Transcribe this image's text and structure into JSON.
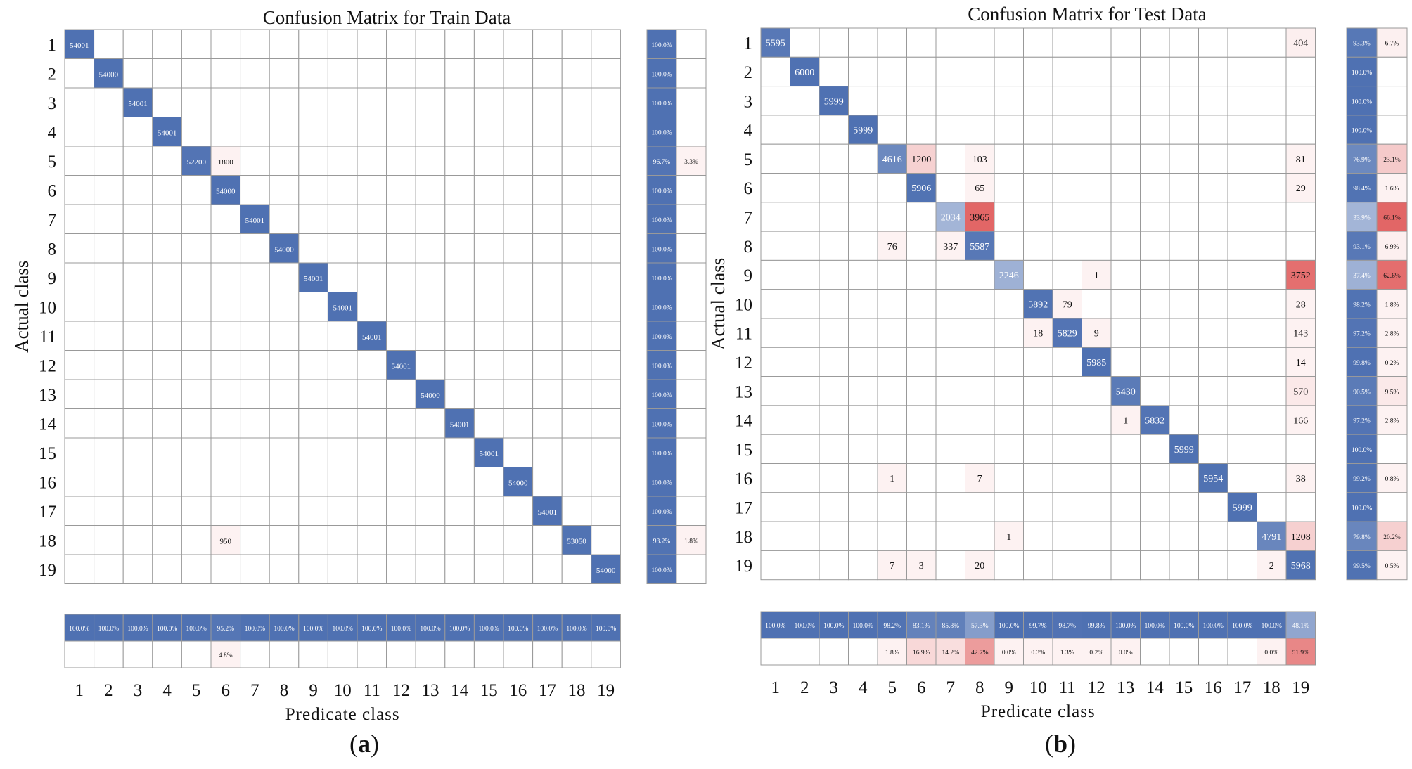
{
  "colors": {
    "diag": "#4f71b2",
    "off": "#e05a5a",
    "grid": "#999999",
    "text": "#111111"
  },
  "chart_data": [
    {
      "panel_label": "a",
      "type": "heatmap",
      "title": "Confusion Matrix for Train Data",
      "xlabel": "Predicate class",
      "ylabel": "Actual class",
      "classes": [
        "1",
        "2",
        "3",
        "4",
        "5",
        "6",
        "7",
        "8",
        "9",
        "10",
        "11",
        "12",
        "13",
        "14",
        "15",
        "16",
        "17",
        "18",
        "19"
      ],
      "matrix": [
        [
          54001,
          0,
          0,
          0,
          0,
          0,
          0,
          0,
          0,
          0,
          0,
          0,
          0,
          0,
          0,
          0,
          0,
          0,
          0
        ],
        [
          0,
          54000,
          0,
          0,
          0,
          0,
          0,
          0,
          0,
          0,
          0,
          0,
          0,
          0,
          0,
          0,
          0,
          0,
          0
        ],
        [
          0,
          0,
          54001,
          0,
          0,
          0,
          0,
          0,
          0,
          0,
          0,
          0,
          0,
          0,
          0,
          0,
          0,
          0,
          0
        ],
        [
          0,
          0,
          0,
          54001,
          0,
          0,
          0,
          0,
          0,
          0,
          0,
          0,
          0,
          0,
          0,
          0,
          0,
          0,
          0
        ],
        [
          0,
          0,
          0,
          0,
          52200,
          1800,
          0,
          0,
          0,
          0,
          0,
          0,
          0,
          0,
          0,
          0,
          0,
          0,
          0
        ],
        [
          0,
          0,
          0,
          0,
          0,
          54000,
          0,
          0,
          0,
          0,
          0,
          0,
          0,
          0,
          0,
          0,
          0,
          0,
          0
        ],
        [
          0,
          0,
          0,
          0,
          0,
          0,
          54001,
          0,
          0,
          0,
          0,
          0,
          0,
          0,
          0,
          0,
          0,
          0,
          0
        ],
        [
          0,
          0,
          0,
          0,
          0,
          0,
          0,
          54000,
          0,
          0,
          0,
          0,
          0,
          0,
          0,
          0,
          0,
          0,
          0
        ],
        [
          0,
          0,
          0,
          0,
          0,
          0,
          0,
          0,
          54001,
          0,
          0,
          0,
          0,
          0,
          0,
          0,
          0,
          0,
          0
        ],
        [
          0,
          0,
          0,
          0,
          0,
          0,
          0,
          0,
          0,
          54001,
          0,
          0,
          0,
          0,
          0,
          0,
          0,
          0,
          0
        ],
        [
          0,
          0,
          0,
          0,
          0,
          0,
          0,
          0,
          0,
          0,
          54001,
          0,
          0,
          0,
          0,
          0,
          0,
          0,
          0
        ],
        [
          0,
          0,
          0,
          0,
          0,
          0,
          0,
          0,
          0,
          0,
          0,
          54001,
          0,
          0,
          0,
          0,
          0,
          0,
          0
        ],
        [
          0,
          0,
          0,
          0,
          0,
          0,
          0,
          0,
          0,
          0,
          0,
          0,
          54000,
          0,
          0,
          0,
          0,
          0,
          0
        ],
        [
          0,
          0,
          0,
          0,
          0,
          0,
          0,
          0,
          0,
          0,
          0,
          0,
          0,
          54001,
          0,
          0,
          0,
          0,
          0
        ],
        [
          0,
          0,
          0,
          0,
          0,
          0,
          0,
          0,
          0,
          0,
          0,
          0,
          0,
          0,
          54001,
          0,
          0,
          0,
          0
        ],
        [
          0,
          0,
          0,
          0,
          0,
          0,
          0,
          0,
          0,
          0,
          0,
          0,
          0,
          0,
          0,
          54000,
          0,
          0,
          0
        ],
        [
          0,
          0,
          0,
          0,
          0,
          0,
          0,
          0,
          0,
          0,
          0,
          0,
          0,
          0,
          0,
          0,
          54001,
          0,
          0
        ],
        [
          0,
          0,
          0,
          0,
          0,
          950,
          0,
          0,
          0,
          0,
          0,
          0,
          0,
          0,
          0,
          0,
          0,
          53050,
          0
        ],
        [
          0,
          0,
          0,
          0,
          0,
          0,
          0,
          0,
          0,
          0,
          0,
          0,
          0,
          0,
          0,
          0,
          0,
          0,
          54000
        ]
      ],
      "row_summary": {
        "correct": [
          "100.0%",
          "100.0%",
          "100.0%",
          "100.0%",
          "96.7%",
          "100.0%",
          "100.0%",
          "100.0%",
          "100.0%",
          "100.0%",
          "100.0%",
          "100.0%",
          "100.0%",
          "100.0%",
          "100.0%",
          "100.0%",
          "100.0%",
          "98.2%",
          "100.0%"
        ],
        "incorrect": [
          "",
          "",
          "",
          "",
          "3.3%",
          "",
          "",
          "",
          "",
          "",
          "",
          "",
          "",
          "",
          "",
          "",
          "",
          "1.8%",
          ""
        ]
      },
      "col_summary": {
        "correct": [
          "100.0%",
          "100.0%",
          "100.0%",
          "100.0%",
          "100.0%",
          "95.2%",
          "100.0%",
          "100.0%",
          "100.0%",
          "100.0%",
          "100.0%",
          "100.0%",
          "100.0%",
          "100.0%",
          "100.0%",
          "100.0%",
          "100.0%",
          "100.0%",
          "100.0%"
        ],
        "incorrect": [
          "",
          "",
          "",
          "",
          "",
          "4.8%",
          "",
          "",
          "",
          "",
          "",
          "",
          "",
          "",
          "",
          "",
          "",
          "",
          ""
        ]
      }
    },
    {
      "panel_label": "b",
      "type": "heatmap",
      "title": "Confusion Matrix for Test Data",
      "xlabel": "Predicate class",
      "ylabel": "Actual class",
      "classes": [
        "1",
        "2",
        "3",
        "4",
        "5",
        "6",
        "7",
        "8",
        "9",
        "10",
        "11",
        "12",
        "13",
        "14",
        "15",
        "16",
        "17",
        "18",
        "19"
      ],
      "matrix": [
        [
          5595,
          0,
          0,
          0,
          0,
          0,
          0,
          0,
          0,
          0,
          0,
          0,
          0,
          0,
          0,
          0,
          0,
          0,
          404
        ],
        [
          0,
          6000,
          0,
          0,
          0,
          0,
          0,
          0,
          0,
          0,
          0,
          0,
          0,
          0,
          0,
          0,
          0,
          0,
          0
        ],
        [
          0,
          0,
          5999,
          0,
          0,
          0,
          0,
          0,
          0,
          0,
          0,
          0,
          0,
          0,
          0,
          0,
          0,
          0,
          0
        ],
        [
          0,
          0,
          0,
          5999,
          0,
          0,
          0,
          0,
          0,
          0,
          0,
          0,
          0,
          0,
          0,
          0,
          0,
          0,
          0
        ],
        [
          0,
          0,
          0,
          0,
          4616,
          1200,
          0,
          103,
          0,
          0,
          0,
          0,
          0,
          0,
          0,
          0,
          0,
          0,
          81
        ],
        [
          0,
          0,
          0,
          0,
          0,
          5906,
          0,
          65,
          0,
          0,
          0,
          0,
          0,
          0,
          0,
          0,
          0,
          0,
          29
        ],
        [
          0,
          0,
          0,
          0,
          0,
          0,
          2034,
          3965,
          0,
          0,
          0,
          0,
          0,
          0,
          0,
          0,
          0,
          0,
          0
        ],
        [
          0,
          0,
          0,
          0,
          76,
          0,
          337,
          5587,
          0,
          0,
          0,
          0,
          0,
          0,
          0,
          0,
          0,
          0,
          0
        ],
        [
          0,
          0,
          0,
          0,
          0,
          0,
          0,
          0,
          2246,
          0,
          0,
          1,
          0,
          0,
          0,
          0,
          0,
          0,
          3752
        ],
        [
          0,
          0,
          0,
          0,
          0,
          0,
          0,
          0,
          0,
          5892,
          79,
          0,
          0,
          0,
          0,
          0,
          0,
          0,
          28
        ],
        [
          0,
          0,
          0,
          0,
          0,
          0,
          0,
          0,
          0,
          18,
          5829,
          9,
          0,
          0,
          0,
          0,
          0,
          0,
          143
        ],
        [
          0,
          0,
          0,
          0,
          0,
          0,
          0,
          0,
          0,
          0,
          0,
          5985,
          0,
          0,
          0,
          0,
          0,
          0,
          14
        ],
        [
          0,
          0,
          0,
          0,
          0,
          0,
          0,
          0,
          0,
          0,
          0,
          0,
          5430,
          0,
          0,
          0,
          0,
          0,
          570
        ],
        [
          0,
          0,
          0,
          0,
          0,
          0,
          0,
          0,
          0,
          0,
          0,
          0,
          1,
          5832,
          0,
          0,
          0,
          0,
          166
        ],
        [
          0,
          0,
          0,
          0,
          0,
          0,
          0,
          0,
          0,
          0,
          0,
          0,
          0,
          0,
          5999,
          0,
          0,
          0,
          0
        ],
        [
          0,
          0,
          0,
          0,
          1,
          0,
          0,
          7,
          0,
          0,
          0,
          0,
          0,
          0,
          0,
          5954,
          0,
          0,
          38
        ],
        [
          0,
          0,
          0,
          0,
          0,
          0,
          0,
          0,
          0,
          0,
          0,
          0,
          0,
          0,
          0,
          0,
          5999,
          0,
          0
        ],
        [
          0,
          0,
          0,
          0,
          0,
          0,
          0,
          0,
          1,
          0,
          0,
          0,
          0,
          0,
          0,
          0,
          0,
          4791,
          1208
        ],
        [
          0,
          0,
          0,
          0,
          7,
          3,
          0,
          20,
          0,
          0,
          0,
          0,
          0,
          0,
          0,
          0,
          0,
          2,
          5968
        ]
      ],
      "row_summary": {
        "correct": [
          "93.3%",
          "100.0%",
          "100.0%",
          "100.0%",
          "76.9%",
          "98.4%",
          "33.9%",
          "93.1%",
          "37.4%",
          "98.2%",
          "97.2%",
          "99.8%",
          "90.5%",
          "97.2%",
          "100.0%",
          "99.2%",
          "100.0%",
          "79.8%",
          "99.5%"
        ],
        "incorrect": [
          "6.7%",
          "",
          "",
          "",
          "23.1%",
          "1.6%",
          "66.1%",
          "6.9%",
          "62.6%",
          "1.8%",
          "2.8%",
          "0.2%",
          "9.5%",
          "2.8%",
          "",
          "0.8%",
          "",
          "20.2%",
          "0.5%"
        ]
      },
      "col_summary": {
        "correct": [
          "100.0%",
          "100.0%",
          "100.0%",
          "100.0%",
          "98.2%",
          "83.1%",
          "85.8%",
          "57.3%",
          "100.0%",
          "99.7%",
          "98.7%",
          "99.8%",
          "100.0%",
          "100.0%",
          "100.0%",
          "100.0%",
          "100.0%",
          "100.0%",
          "48.1%"
        ],
        "incorrect": [
          "",
          "",
          "",
          "",
          "1.8%",
          "16.9%",
          "14.2%",
          "42.7%",
          "0.0%",
          "0.3%",
          "1.3%",
          "0.2%",
          "0.0%",
          "",
          "",
          "",
          "",
          "0.0%",
          "51.9%"
        ]
      }
    }
  ]
}
